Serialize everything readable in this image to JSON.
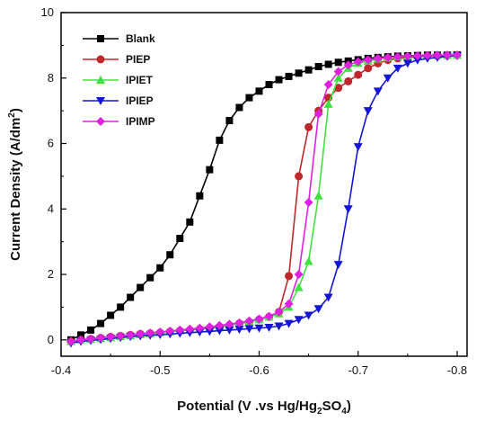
{
  "chart_data": {
    "type": "line",
    "xlabel": "Potential (V .vs Hg/Hg2SO4)",
    "ylabel": "Current Density (A/dm2)",
    "xlim": [
      -0.4,
      -0.81
    ],
    "ylim": [
      -0.5,
      10
    ],
    "x_ticks": [
      "-0.4",
      "-0.5",
      "-0.6",
      "-0.7",
      "-0.8"
    ],
    "y_ticks": [
      "0",
      "2",
      "4",
      "6",
      "8",
      "10"
    ],
    "grid": false,
    "legend_position": "top-left",
    "series": [
      {
        "name": "Blank",
        "color": "#000000",
        "marker": "square",
        "x": [
          -0.41,
          -0.42,
          -0.43,
          -0.44,
          -0.45,
          -0.46,
          -0.47,
          -0.48,
          -0.49,
          -0.5,
          -0.51,
          -0.52,
          -0.53,
          -0.54,
          -0.55,
          -0.56,
          -0.57,
          -0.58,
          -0.59,
          -0.6,
          -0.61,
          -0.62,
          -0.63,
          -0.64,
          -0.65,
          -0.66,
          -0.67,
          -0.68,
          -0.69,
          -0.7,
          -0.71,
          -0.72,
          -0.73,
          -0.74,
          -0.75,
          -0.76,
          -0.77,
          -0.78,
          -0.79,
          -0.8
        ],
        "y": [
          0.0,
          0.15,
          0.3,
          0.5,
          0.75,
          1.0,
          1.3,
          1.6,
          1.9,
          2.2,
          2.6,
          3.1,
          3.6,
          4.4,
          5.2,
          6.1,
          6.7,
          7.1,
          7.4,
          7.6,
          7.8,
          7.95,
          8.05,
          8.15,
          8.25,
          8.35,
          8.42,
          8.48,
          8.52,
          8.56,
          8.6,
          8.63,
          8.65,
          8.67,
          8.68,
          8.69,
          8.7,
          8.7,
          8.7,
          8.71
        ]
      },
      {
        "name": "PIEP",
        "color": "#c0272d",
        "marker": "circle",
        "x": [
          -0.41,
          -0.42,
          -0.43,
          -0.44,
          -0.45,
          -0.46,
          -0.47,
          -0.48,
          -0.49,
          -0.5,
          -0.51,
          -0.52,
          -0.53,
          -0.54,
          -0.55,
          -0.56,
          -0.57,
          -0.58,
          -0.59,
          -0.6,
          -0.61,
          -0.62,
          -0.63,
          -0.64,
          -0.65,
          -0.66,
          -0.67,
          -0.68,
          -0.69,
          -0.7,
          -0.71,
          -0.72,
          -0.73,
          -0.74,
          -0.75,
          -0.76,
          -0.77,
          -0.78,
          -0.79,
          -0.8
        ],
        "y": [
          -0.05,
          0.0,
          0.03,
          0.06,
          0.09,
          0.12,
          0.15,
          0.18,
          0.2,
          0.22,
          0.25,
          0.28,
          0.3,
          0.33,
          0.36,
          0.4,
          0.45,
          0.5,
          0.55,
          0.62,
          0.7,
          0.85,
          1.95,
          5.0,
          6.5,
          7.0,
          7.4,
          7.7,
          7.9,
          8.1,
          8.3,
          8.45,
          8.55,
          8.6,
          8.63,
          8.65,
          8.67,
          8.68,
          8.69,
          8.7
        ]
      },
      {
        "name": "IPIET",
        "color": "#3ee23e",
        "marker": "triangle-up",
        "x": [
          -0.41,
          -0.42,
          -0.43,
          -0.44,
          -0.45,
          -0.46,
          -0.47,
          -0.48,
          -0.49,
          -0.5,
          -0.51,
          -0.52,
          -0.53,
          -0.54,
          -0.55,
          -0.56,
          -0.57,
          -0.58,
          -0.59,
          -0.6,
          -0.61,
          -0.62,
          -0.63,
          -0.64,
          -0.65,
          -0.66,
          -0.67,
          -0.68,
          -0.69,
          -0.7,
          -0.71,
          -0.72,
          -0.73,
          -0.74,
          -0.75,
          -0.76,
          -0.77,
          -0.78,
          -0.79,
          -0.8
        ],
        "y": [
          -0.05,
          0.0,
          0.02,
          0.04,
          0.07,
          0.1,
          0.13,
          0.16,
          0.19,
          0.22,
          0.25,
          0.28,
          0.31,
          0.34,
          0.38,
          0.42,
          0.46,
          0.5,
          0.56,
          0.62,
          0.7,
          0.8,
          1.0,
          1.6,
          2.4,
          4.4,
          7.2,
          8.0,
          8.3,
          8.45,
          8.52,
          8.58,
          8.62,
          8.65,
          8.67,
          8.68,
          8.69,
          8.7,
          8.7,
          8.7
        ]
      },
      {
        "name": "IPIEP",
        "color": "#1515d6",
        "marker": "triangle-down",
        "x": [
          -0.41,
          -0.42,
          -0.43,
          -0.44,
          -0.45,
          -0.46,
          -0.47,
          -0.48,
          -0.49,
          -0.5,
          -0.51,
          -0.52,
          -0.53,
          -0.54,
          -0.55,
          -0.56,
          -0.57,
          -0.58,
          -0.59,
          -0.6,
          -0.61,
          -0.62,
          -0.63,
          -0.64,
          -0.65,
          -0.66,
          -0.67,
          -0.68,
          -0.69,
          -0.7,
          -0.71,
          -0.72,
          -0.73,
          -0.74,
          -0.75,
          -0.76,
          -0.77,
          -0.78,
          -0.79,
          -0.8
        ],
        "y": [
          -0.1,
          -0.05,
          -0.02,
          0.01,
          0.04,
          0.07,
          0.1,
          0.12,
          0.14,
          0.16,
          0.18,
          0.2,
          0.22,
          0.24,
          0.26,
          0.28,
          0.3,
          0.32,
          0.34,
          0.36,
          0.38,
          0.42,
          0.5,
          0.62,
          0.75,
          0.95,
          1.3,
          2.3,
          4.0,
          5.9,
          7.0,
          7.6,
          8.0,
          8.3,
          8.45,
          8.55,
          8.6,
          8.63,
          8.66,
          8.68
        ]
      },
      {
        "name": "IPIMP",
        "color": "#e020e0",
        "marker": "diamond",
        "x": [
          -0.41,
          -0.42,
          -0.43,
          -0.44,
          -0.45,
          -0.46,
          -0.47,
          -0.48,
          -0.49,
          -0.5,
          -0.51,
          -0.52,
          -0.53,
          -0.54,
          -0.55,
          -0.56,
          -0.57,
          -0.58,
          -0.59,
          -0.6,
          -0.61,
          -0.62,
          -0.63,
          -0.64,
          -0.65,
          -0.66,
          -0.67,
          -0.68,
          -0.69,
          -0.7,
          -0.71,
          -0.72,
          -0.73,
          -0.74,
          -0.75,
          -0.76,
          -0.77,
          -0.78,
          -0.79,
          -0.8
        ],
        "y": [
          -0.05,
          0.0,
          0.03,
          0.06,
          0.09,
          0.12,
          0.15,
          0.18,
          0.21,
          0.24,
          0.27,
          0.3,
          0.33,
          0.36,
          0.4,
          0.44,
          0.48,
          0.52,
          0.58,
          0.64,
          0.72,
          0.85,
          1.1,
          2.0,
          4.2,
          6.9,
          7.8,
          8.2,
          8.4,
          8.5,
          8.56,
          8.6,
          8.63,
          8.65,
          8.67,
          8.68,
          8.69,
          8.7,
          8.7,
          8.7
        ]
      }
    ]
  }
}
